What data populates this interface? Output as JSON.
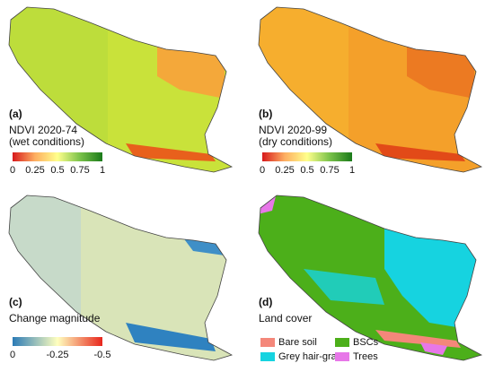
{
  "panels": [
    {
      "label": "(a)",
      "title": "NDVI 2020-74",
      "subtitle": "(wet conditions)",
      "ticks": [
        "0",
        "0.25",
        "0.5",
        "0.75",
        "1"
      ]
    },
    {
      "label": "(b)",
      "title": "NDVI 2020-99",
      "subtitle": "(dry conditions)",
      "ticks": [
        "0",
        "0.25",
        "0.5",
        "0.75",
        "1"
      ]
    },
    {
      "label": "(c)",
      "title": "Change magnitude",
      "ticks": [
        "0",
        "-0.25",
        "-0.5"
      ]
    },
    {
      "label": "(d)",
      "title": "Land cover",
      "legend": [
        {
          "name": "Bare soil",
          "color": "#f4877a"
        },
        {
          "name": "BSCs",
          "color": "#4caf1a"
        },
        {
          "name": "Grey hair-grass",
          "color": "#16d3e0"
        },
        {
          "name": "Trees",
          "color": "#e777e8"
        }
      ]
    }
  ]
}
